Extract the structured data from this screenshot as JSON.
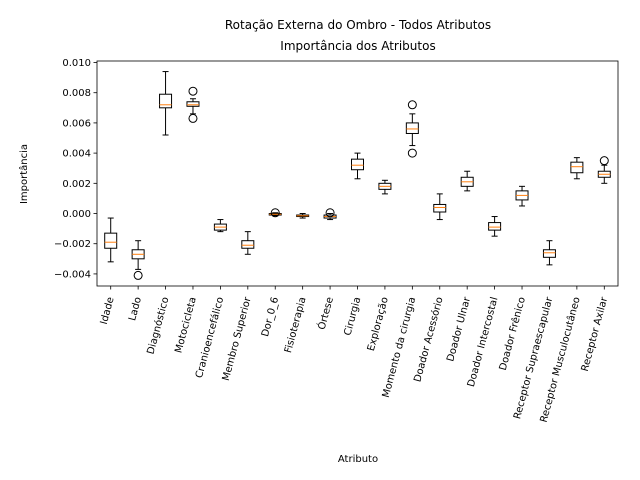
{
  "chart_data": {
    "type": "boxplot",
    "title": "Rotação Externa do Ombro - Todos Atributos",
    "subtitle": "Importância dos Atributos",
    "xlabel": "Atributo",
    "ylabel": "Importância",
    "ylim": [
      -0.0048,
      0.0101
    ],
    "yticks": [
      -0.004,
      -0.002,
      0.0,
      0.002,
      0.004,
      0.006,
      0.008,
      0.01
    ],
    "ytick_labels": [
      "−0.004",
      "−0.002",
      "0.000",
      "0.002",
      "0.004",
      "0.006",
      "0.008",
      "0.010"
    ],
    "grid": false,
    "colors": {
      "box": "#000000",
      "median": "#ff7f0e",
      "flier": "#000000"
    },
    "categories": [
      "Idade",
      "Lado",
      "Diagnóstico",
      "Motocicleta",
      "Cranioencefálico",
      "Membro Superior",
      "Dor_0_6",
      "Fisioterapia",
      "Órtese",
      "Cirurgia",
      "Exploração",
      "Momento da cirurgia",
      "Doador Acessório",
      "Doador Ulnar",
      "Doador Intercostal",
      "Doador Frênico",
      "Receptor Supraescapular",
      "Receptor Musculocutâneo",
      "Receptor Axilar"
    ],
    "boxes": [
      {
        "whislo": -0.0032,
        "q1": -0.0023,
        "med": -0.0019,
        "q3": -0.0013,
        "whishi": -0.0003,
        "fliers": []
      },
      {
        "whislo": -0.0037,
        "q1": -0.003,
        "med": -0.0027,
        "q3": -0.0024,
        "whishi": -0.0018,
        "fliers": [
          -0.0041
        ]
      },
      {
        "whislo": 0.0052,
        "q1": 0.007,
        "med": 0.0072,
        "q3": 0.0079,
        "whishi": 0.0094,
        "fliers": []
      },
      {
        "whislo": 0.0066,
        "q1": 0.0071,
        "med": 0.0072,
        "q3": 0.0074,
        "whishi": 0.0076,
        "fliers": [
          0.0081,
          0.0063
        ]
      },
      {
        "whislo": -0.0012,
        "q1": -0.0011,
        "med": -0.0009,
        "q3": -0.0007,
        "whishi": -0.0004,
        "fliers": []
      },
      {
        "whislo": -0.0027,
        "q1": -0.0023,
        "med": -0.0021,
        "q3": -0.0018,
        "whishi": -0.0012,
        "fliers": []
      },
      {
        "whislo": -0.00015,
        "q1": -0.0001,
        "med": -5e-05,
        "q3": 0.0,
        "whishi": 5e-05,
        "fliers": [
          5e-05
        ]
      },
      {
        "whislo": -0.0003,
        "q1": -0.0002,
        "med": -0.00015,
        "q3": -0.0001,
        "whishi": 0.0,
        "fliers": []
      },
      {
        "whislo": -0.0004,
        "q1": -0.0003,
        "med": -0.0002,
        "q3": -0.0001,
        "whishi": 0.0,
        "fliers": [
          5e-05
        ]
      },
      {
        "whislo": 0.0023,
        "q1": 0.0029,
        "med": 0.0032,
        "q3": 0.0036,
        "whishi": 0.004,
        "fliers": []
      },
      {
        "whislo": 0.0013,
        "q1": 0.0016,
        "med": 0.0018,
        "q3": 0.002,
        "whishi": 0.0022,
        "fliers": []
      },
      {
        "whislo": 0.0045,
        "q1": 0.0053,
        "med": 0.0056,
        "q3": 0.006,
        "whishi": 0.0066,
        "fliers": [
          0.0072,
          0.004
        ]
      },
      {
        "whislo": -0.0004,
        "q1": 0.0001,
        "med": 0.0004,
        "q3": 0.0006,
        "whishi": 0.0013,
        "fliers": []
      },
      {
        "whislo": 0.0015,
        "q1": 0.0018,
        "med": 0.0021,
        "q3": 0.0024,
        "whishi": 0.0028,
        "fliers": []
      },
      {
        "whislo": -0.0015,
        "q1": -0.0011,
        "med": -0.0009,
        "q3": -0.0006,
        "whishi": -0.0002,
        "fliers": []
      },
      {
        "whislo": 0.0005,
        "q1": 0.0009,
        "med": 0.0012,
        "q3": 0.0015,
        "whishi": 0.0018,
        "fliers": []
      },
      {
        "whislo": -0.0034,
        "q1": -0.0029,
        "med": -0.0026,
        "q3": -0.0024,
        "whishi": -0.0018,
        "fliers": []
      },
      {
        "whislo": 0.0023,
        "q1": 0.0027,
        "med": 0.0031,
        "q3": 0.0034,
        "whishi": 0.0037,
        "fliers": []
      },
      {
        "whislo": 0.002,
        "q1": 0.0024,
        "med": 0.0026,
        "q3": 0.0028,
        "whishi": 0.0032,
        "fliers": [
          0.0035
        ]
      }
    ]
  }
}
